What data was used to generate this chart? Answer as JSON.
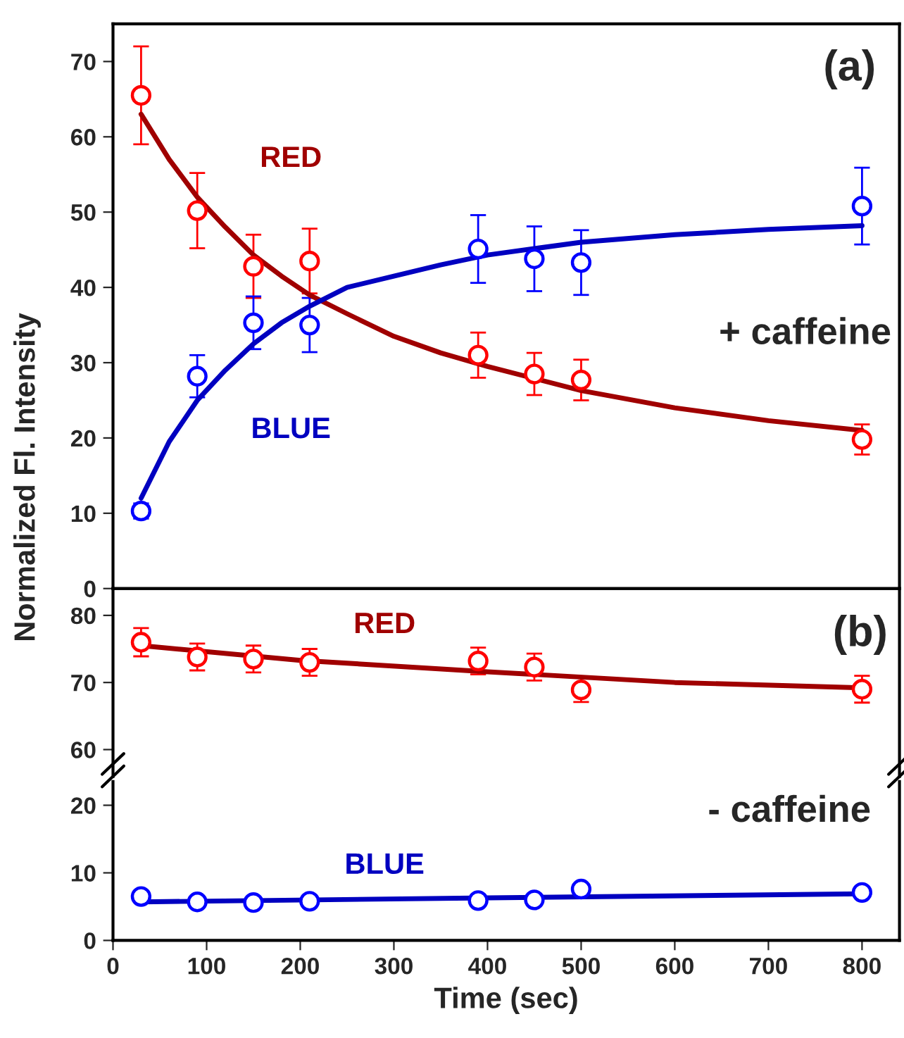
{
  "chart_data": [
    {
      "type": "scatter",
      "ylabel": "Normalized Fl. Intensity",
      "annotations": [
        "(a)",
        "+ caffeine"
      ],
      "x": [
        30,
        90,
        150,
        210,
        390,
        450,
        500,
        800
      ],
      "xlim": [
        0,
        840
      ],
      "xticks": [
        0,
        100,
        200,
        300,
        400,
        500,
        600,
        700,
        800
      ],
      "ylim": [
        0,
        75
      ],
      "yticks": [
        0,
        10,
        20,
        30,
        40,
        50,
        60,
        70
      ],
      "tick_labels": "y",
      "grid": false,
      "legend": false,
      "series": [
        {
          "color": "#ff0000",
          "marker": "circle",
          "values": [
            65.5,
            50.2,
            42.8,
            43.5,
            31,
            28.5,
            27.7,
            19.8
          ],
          "errors": [
            6.5,
            5,
            4.2,
            4.3,
            3,
            2.8,
            2.7,
            2
          ]
        },
        {
          "color": "#0000ff",
          "marker": "circle",
          "values": [
            10.3,
            28.2,
            35.3,
            35,
            45.1,
            43.8,
            43.3,
            50.8
          ],
          "errors": [
            1,
            2.8,
            3.5,
            3.6,
            4.5,
            4.3,
            4.3,
            5.1
          ]
        },
        {
          "type": "line",
          "name": "RED",
          "color": "#a00000",
          "line_style": "solid",
          "x": [
            30,
            60,
            90,
            120,
            150,
            180,
            210,
            250,
            300,
            350,
            400,
            500,
            600,
            700,
            800
          ],
          "values": [
            63,
            57,
            52,
            48,
            44.3,
            41.5,
            39,
            36.5,
            33.5,
            31.3,
            29.5,
            26.3,
            24,
            22.3,
            21
          ]
        },
        {
          "type": "line",
          "name": "BLUE",
          "color": "#0000c0",
          "line_style": "solid",
          "x": [
            30,
            60,
            90,
            120,
            150,
            180,
            210,
            250,
            300,
            350,
            400,
            500,
            600,
            700,
            800
          ],
          "values": [
            12,
            19.5,
            25,
            29,
            32.5,
            35.3,
            37.5,
            40,
            41.5,
            43,
            44.3,
            46,
            47,
            47.7,
            48.2
          ]
        }
      ]
    },
    {
      "type": "scatter",
      "annotations": [
        "(b)",
        "- caffeine"
      ],
      "x": [
        30,
        90,
        150,
        210,
        390,
        450,
        500,
        800
      ],
      "xlim": [
        0,
        840
      ],
      "xticks": [
        0,
        100,
        200,
        300,
        400,
        500,
        600,
        700,
        800
      ],
      "ylim": [
        56,
        84
      ],
      "yticks": [
        60,
        70,
        80
      ],
      "tick_labels": "y",
      "grid": false,
      "legend": false,
      "series": [
        {
          "color": "#ff0000",
          "marker": "circle",
          "values": [
            76,
            73.8,
            73.5,
            73,
            73.2,
            72.3,
            68.9,
            69
          ],
          "errors": [
            2.1,
            2,
            2,
            2,
            2,
            2,
            1.8,
            2
          ]
        },
        {
          "type": "line",
          "name": "RED",
          "color": "#a00000",
          "line_style": "solid",
          "x": [
            30,
            200,
            400,
            600,
            800
          ],
          "values": [
            75.5,
            73.3,
            71.6,
            70,
            69.2
          ]
        }
      ]
    },
    {
      "type": "scatter",
      "xlabel": "Time (sec)",
      "x": [
        30,
        90,
        150,
        210,
        390,
        450,
        500,
        800
      ],
      "xlim": [
        0,
        840
      ],
      "xticks": [
        0,
        100,
        200,
        300,
        400,
        500,
        600,
        700,
        800
      ],
      "ylim": [
        0,
        23.5
      ],
      "yticks": [
        0,
        10,
        20
      ],
      "grid": false,
      "legend": false,
      "series": [
        {
          "color": "#0000ff",
          "marker": "circle",
          "values": [
            6.5,
            5.7,
            5.6,
            5.8,
            5.9,
            6,
            7.6,
            7.1
          ]
        },
        {
          "type": "line",
          "name": "BLUE",
          "color": "#0000c0",
          "line_style": "solid",
          "x": [
            30,
            400,
            800
          ],
          "values": [
            5.7,
            6.3,
            6.9
          ]
        }
      ]
    }
  ]
}
